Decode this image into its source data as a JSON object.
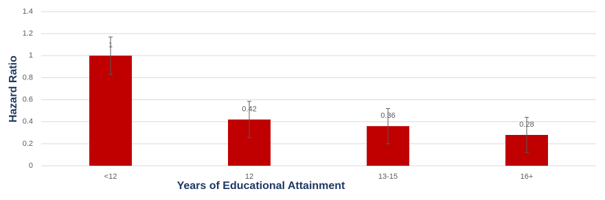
{
  "chart_data": {
    "type": "bar",
    "categories": [
      "<12",
      "12",
      "13-15",
      "16+"
    ],
    "values": [
      1,
      0.42,
      0.36,
      0.28
    ],
    "errors": [
      0.17,
      0.165,
      0.16,
      0.16
    ],
    "color": "#c00000",
    "x_label": "Years of Educational Attainment",
    "y_label": "Hazard Ratio",
    "ylim": [
      0,
      1.4
    ],
    "yticks": [
      0,
      0.2,
      0.4,
      0.6,
      0.8,
      1,
      1.2,
      1.4
    ],
    "grid": true
  }
}
